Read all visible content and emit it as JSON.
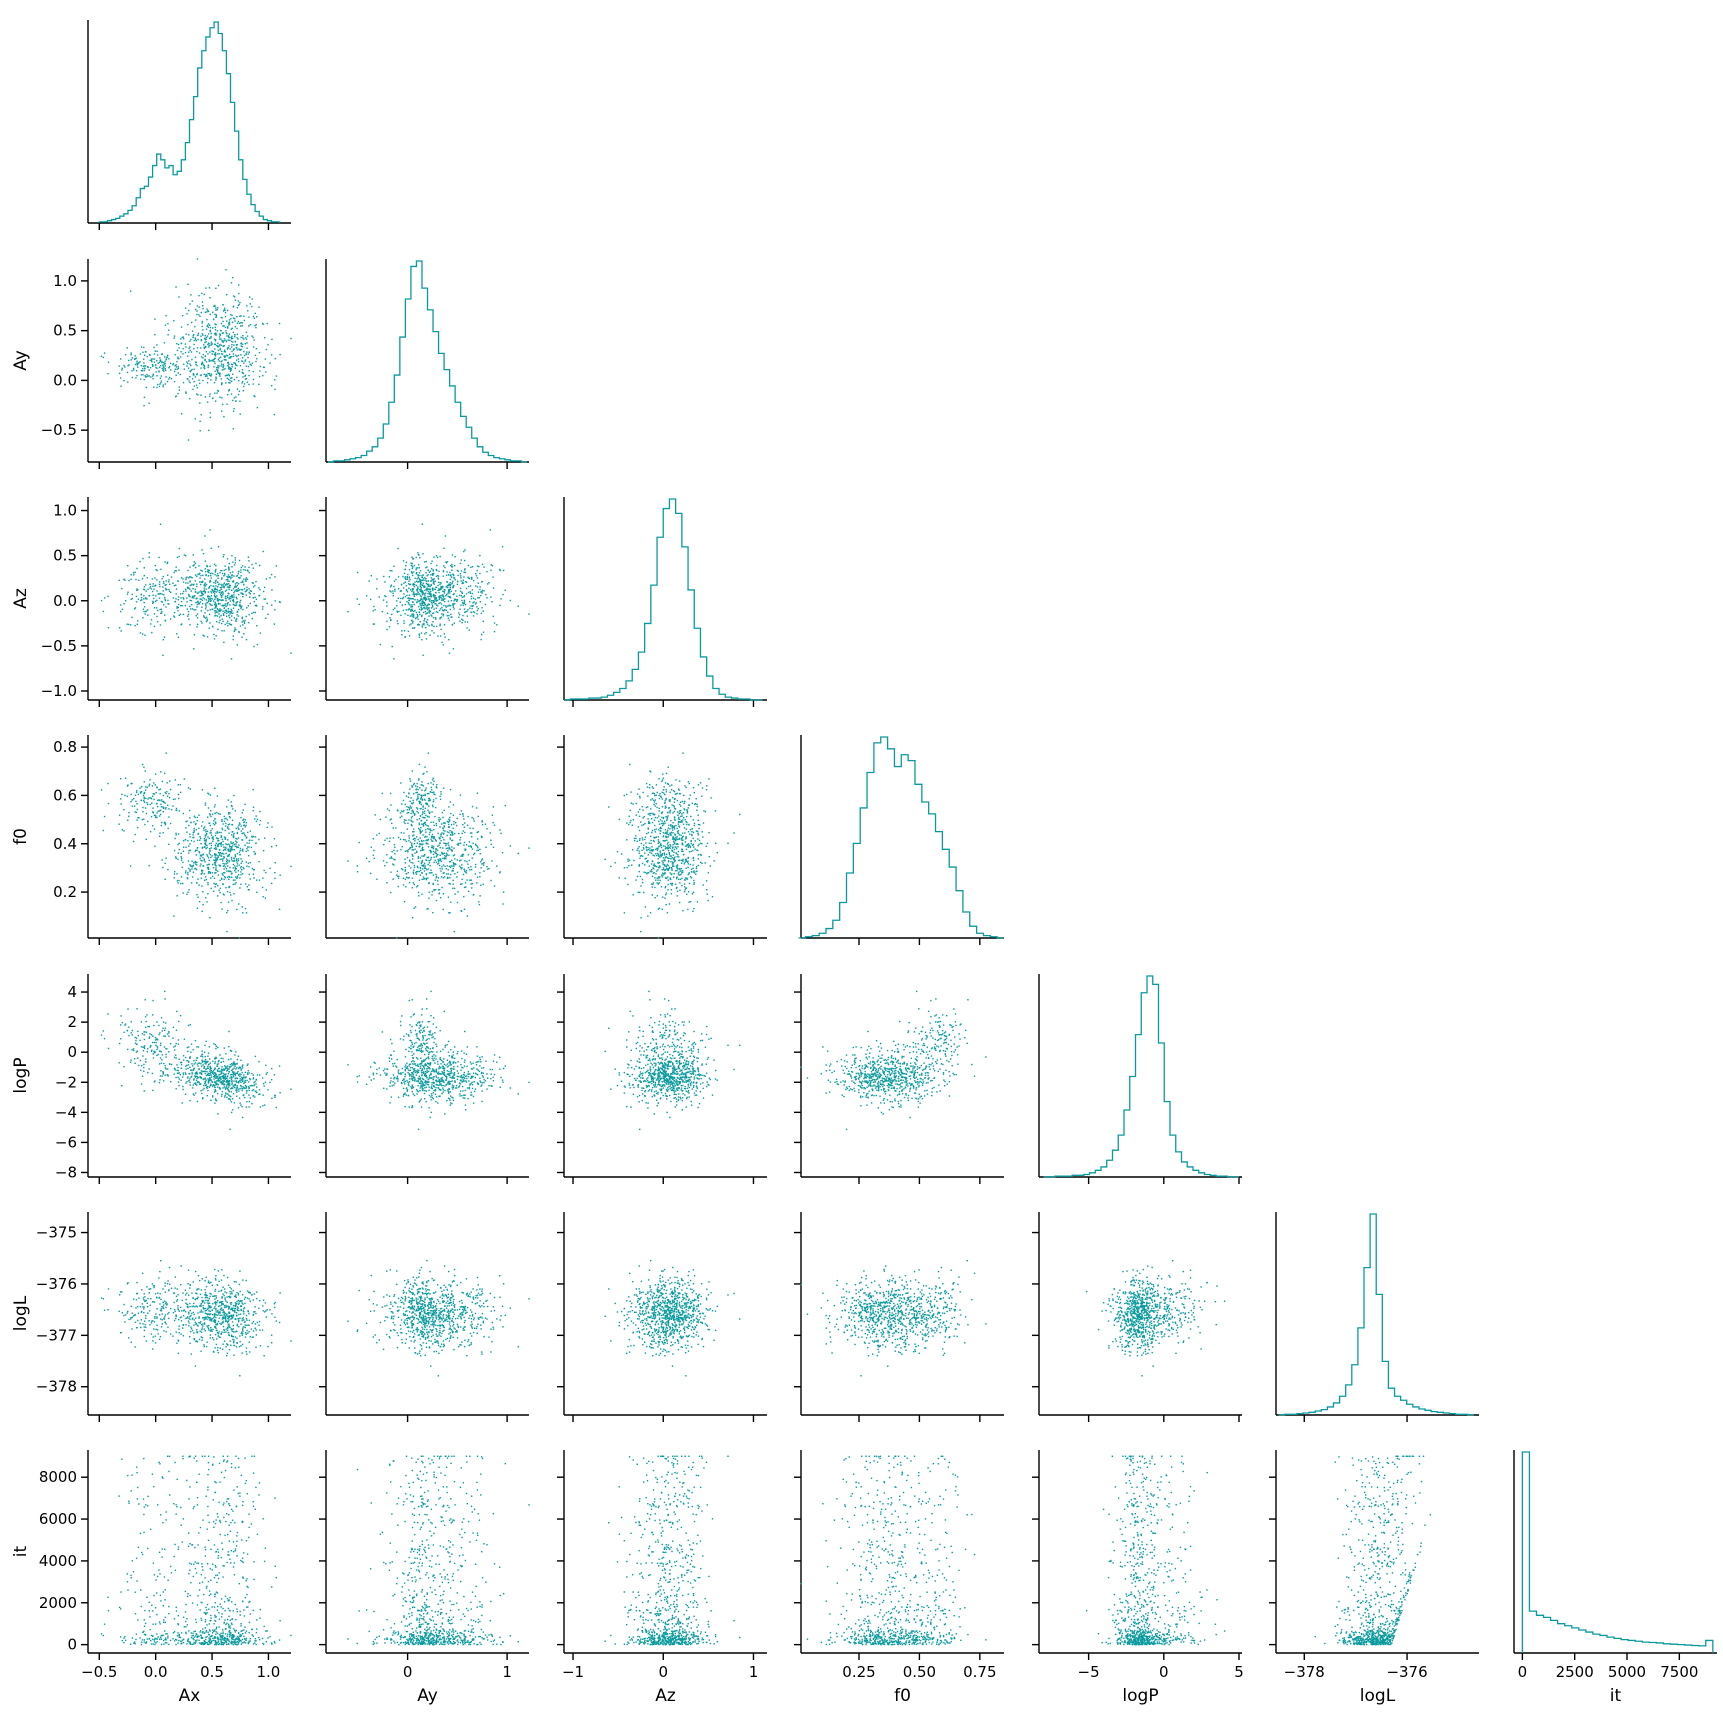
{
  "chart_data": {
    "type": "scatter",
    "layout": "corner-plot",
    "color": "#0a9a9e",
    "variables": [
      {
        "key": "Ax",
        "label": "Ax",
        "lim": [
          -0.6,
          1.2
        ],
        "ticks": [
          -0.5,
          0.0,
          0.5,
          1.0
        ],
        "tick_labels": [
          "−0.5",
          "0.0",
          "0.5",
          "1.0"
        ]
      },
      {
        "key": "Ay",
        "label": "Ay",
        "lim": [
          -0.82,
          1.22
        ],
        "ticks": [
          -0.5,
          0.0,
          0.5,
          1.0
        ],
        "tick_labels": [
          "−0.5",
          "0.0",
          "0.5",
          "1.0"
        ]
      },
      {
        "key": "Az",
        "label": "Az",
        "lim": [
          -1.1,
          1.15
        ],
        "ticks": [
          -1.0,
          -0.5,
          0.0,
          0.5,
          1.0
        ],
        "tick_labels": [
          "−1.0",
          "−0.5",
          "0.0",
          "0.5",
          "1.0"
        ]
      },
      {
        "key": "f0",
        "label": "f0",
        "lim": [
          0.01,
          0.85
        ],
        "ticks": [
          0.2,
          0.4,
          0.6,
          0.8
        ],
        "tick_labels": [
          "0.2",
          "0.4",
          "0.6",
          "0.8"
        ]
      },
      {
        "key": "logP",
        "label": "logP",
        "lim": [
          -8.3,
          5.2
        ],
        "ticks": [
          -8,
          -6,
          -4,
          -2,
          0,
          2,
          4
        ],
        "tick_labels": [
          "−8",
          "−6",
          "−4",
          "−2",
          "0",
          "2",
          "4"
        ]
      },
      {
        "key": "logL",
        "label": "logL",
        "lim": [
          -378.55,
          -374.6
        ],
        "ticks": [
          -378,
          -377,
          -376,
          -375
        ],
        "tick_labels": [
          "−378",
          "−377",
          "−376",
          "−375"
        ]
      },
      {
        "key": "it",
        "label": "it",
        "lim": [
          -400,
          9300
        ],
        "ticks": [
          0,
          2000,
          4000,
          6000,
          8000
        ],
        "tick_labels": [
          "0",
          "2000",
          "4000",
          "6000",
          "8000"
        ]
      }
    ],
    "bottom_axes": [
      {
        "ticks": [
          -0.5,
          0.0,
          0.5,
          1.0
        ],
        "tick_labels": [
          "−0.5",
          "0.0",
          "0.5",
          "1.0"
        ]
      },
      {
        "ticks": [
          0,
          1
        ],
        "tick_labels": [
          "0",
          "1"
        ]
      },
      {
        "ticks": [
          -1,
          0,
          1
        ],
        "tick_labels": [
          "−1",
          "0",
          "1"
        ]
      },
      {
        "ticks": [
          0.25,
          0.5,
          0.75
        ],
        "tick_labels": [
          "0.25",
          "0.50",
          "0.75"
        ]
      },
      {
        "ticks": [
          -5,
          0,
          5
        ],
        "tick_labels": [
          "−5",
          "0",
          "5"
        ]
      },
      {
        "ticks": [
          -378,
          -376
        ],
        "tick_labels": [
          "−378",
          "−376"
        ]
      },
      {
        "ticks": [
          0,
          2500,
          5000,
          7500
        ],
        "tick_labels": [
          "0",
          "2500",
          "5000",
          "7500"
        ]
      }
    ],
    "histograms": [
      {
        "variable": "Ax",
        "edges_lim": [
          -0.5,
          1.1
        ],
        "counts": [
          1,
          1,
          2,
          3,
          4,
          6,
          8,
          11,
          15,
          22,
          30,
          32,
          40,
          50,
          60,
          55,
          48,
          50,
          42,
          45,
          55,
          70,
          90,
          110,
          135,
          150,
          162,
          170,
          175,
          165,
          150,
          130,
          105,
          80,
          55,
          38,
          25,
          16,
          10,
          6,
          3,
          2,
          1,
          1
        ]
      },
      {
        "variable": "Ay",
        "edges_lim": [
          -0.8,
          1.2
        ],
        "counts": [
          0,
          1,
          1,
          2,
          3,
          4,
          6,
          10,
          14,
          22,
          35,
          55,
          80,
          115,
          150,
          180,
          185,
          160,
          140,
          120,
          100,
          85,
          70,
          55,
          42,
          32,
          22,
          14,
          9,
          6,
          4,
          3,
          2,
          1,
          1,
          0
        ]
      },
      {
        "variable": "Az",
        "edges_lim": [
          -1.1,
          1.1
        ],
        "counts": [
          0,
          1,
          1,
          1,
          2,
          2,
          3,
          5,
          8,
          12,
          20,
          32,
          50,
          80,
          120,
          170,
          200,
          210,
          195,
          160,
          115,
          75,
          45,
          25,
          12,
          6,
          3,
          2,
          1,
          1,
          0,
          0
        ]
      },
      {
        "variable": "f0",
        "edges_lim": [
          0.0,
          0.85
        ],
        "counts": [
          0,
          1,
          2,
          4,
          8,
          15,
          30,
          55,
          80,
          110,
          140,
          165,
          170,
          160,
          145,
          155,
          150,
          130,
          115,
          105,
          90,
          75,
          60,
          40,
          22,
          10,
          4,
          2,
          1,
          0
        ]
      },
      {
        "variable": "logP",
        "edges_lim": [
          -8.0,
          5.0
        ],
        "counts": [
          0,
          0,
          1,
          1,
          1,
          2,
          2,
          3,
          5,
          8,
          12,
          20,
          32,
          50,
          80,
          120,
          170,
          220,
          240,
          230,
          160,
          90,
          50,
          30,
          18,
          12,
          8,
          5,
          3,
          2,
          1,
          1,
          0,
          0
        ]
      },
      {
        "variable": "logL",
        "edges_lim": [
          -378.5,
          -374.7
        ],
        "counts": [
          0,
          1,
          1,
          2,
          3,
          4,
          6,
          8,
          12,
          18,
          28,
          45,
          75,
          130,
          220,
          300,
          180,
          80,
          40,
          28,
          22,
          16,
          12,
          9,
          7,
          5,
          4,
          3,
          2,
          1,
          1,
          0
        ]
      },
      {
        "variable": "it",
        "edges_lim": [
          0,
          9100
        ],
        "counts": [
          480,
          100,
          90,
          85,
          78,
          70,
          65,
          60,
          55,
          50,
          45,
          42,
          38,
          35,
          32,
          30,
          28,
          26,
          25,
          24,
          22,
          21,
          20,
          19,
          18,
          17,
          30
        ]
      }
    ],
    "scatter_pairs": "lower-triangle: rows Ay, Az, f0, logP, logL, it vs columns Ax, Ay, Az, f0, logP, logL (sampled posterior points)",
    "point_count_per_panel": 900
  }
}
